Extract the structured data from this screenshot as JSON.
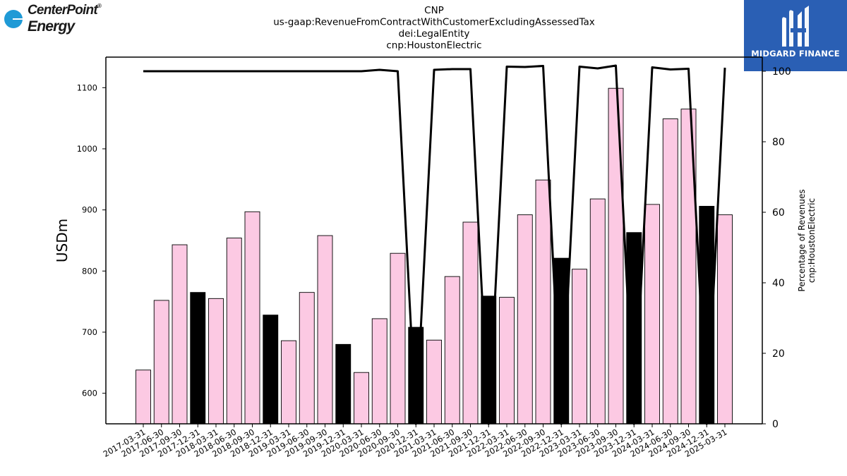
{
  "header": {
    "title_lines": [
      "CNP",
      "us-gaap:RevenueFromContractWithCustomerExcludingAssessedTax",
      "dei:LegalEntity",
      "cnp:HoustonElectric"
    ]
  },
  "logos": {
    "left_line1": "CenterPoint",
    "left_line2": "Energy",
    "left_mark": "®",
    "right_text": "MIDGARD FINANCE"
  },
  "colors": {
    "bar_default": "#fcc9e3",
    "bar_q4": "#000000",
    "line": "#000000",
    "right_logo_bg": "#2a5fb4",
    "left_logo_dot": "#1f9ad6"
  },
  "chart_data": {
    "type": "bar",
    "categories": [
      "2017-03-31",
      "2017-06-30",
      "2017-09-30",
      "2017-12-31",
      "2018-03-31",
      "2018-06-30",
      "2018-09-30",
      "2018-12-31",
      "2019-03-31",
      "2019-06-30",
      "2019-09-30",
      "2019-12-31",
      "2020-03-31",
      "2020-06-30",
      "2020-09-30",
      "2020-12-31",
      "2021-03-31",
      "2021-06-30",
      "2021-09-30",
      "2021-12-31",
      "2022-03-31",
      "2022-06-30",
      "2022-09-30",
      "2022-12-31",
      "2023-03-31",
      "2023-06-30",
      "2023-09-30",
      "2023-12-31",
      "2024-03-31",
      "2024-06-30",
      "2024-09-30",
      "2024-12-31",
      "2025-03-31"
    ],
    "series": [
      {
        "axis": "left",
        "values": [
          638,
          752,
          843,
          765,
          755,
          854,
          897,
          728,
          686,
          765,
          858,
          680,
          634,
          722,
          829,
          708,
          687,
          791,
          880,
          759,
          757,
          892,
          949,
          821,
          803,
          918,
          1099,
          863,
          909,
          1049,
          1065,
          906,
          892
        ]
      },
      {
        "axis": "right",
        "type": "line",
        "values": [
          100,
          100,
          100,
          100,
          100,
          100,
          100,
          100,
          100,
          100,
          100,
          100,
          100,
          100.4,
          100,
          0,
          100.4,
          100.6,
          100.6,
          0,
          101.3,
          101.2,
          101.5,
          0,
          101.3,
          100.8,
          101.6,
          0,
          101.1,
          100.5,
          100.7,
          0,
          101
        ]
      }
    ],
    "highlighted_categories": [
      "2017-12-31",
      "2018-12-31",
      "2019-12-31",
      "2020-12-31",
      "2021-12-31",
      "2022-12-31",
      "2023-12-31",
      "2024-12-31"
    ],
    "ylabel": "USDm",
    "ylim": [
      550,
      1150
    ],
    "yticks": [
      600,
      700,
      800,
      900,
      1000,
      1100
    ],
    "y2label_lines": [
      "Percentage of Revenues",
      "cnp:HoustonElectric"
    ],
    "y2lim": [
      0,
      104
    ],
    "y2ticks": [
      0,
      20,
      40,
      60,
      80,
      100
    ],
    "grid": false
  }
}
